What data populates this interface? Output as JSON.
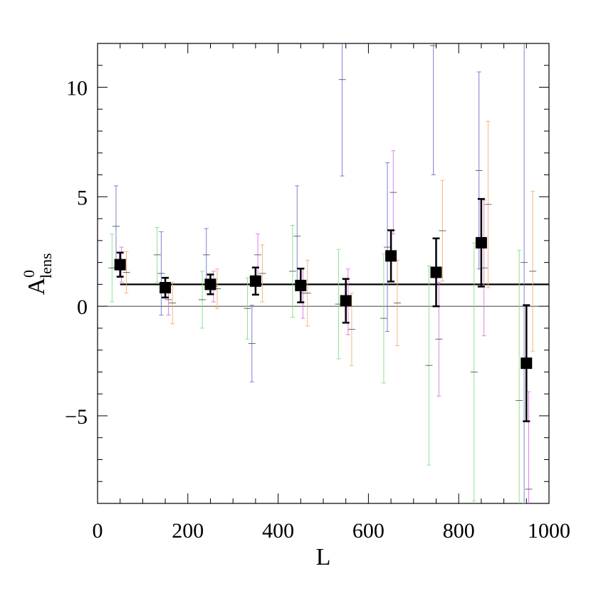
{
  "chart_data": {
    "type": "errorbar",
    "xlabel": "L",
    "ylabel": {
      "base": "A",
      "sup": "0",
      "sub": "lens"
    },
    "xlim": [
      0,
      1000
    ],
    "ylim": [
      -9,
      12
    ],
    "xticks": [
      0,
      200,
      400,
      600,
      800,
      1000
    ],
    "yticks": [
      -5,
      0,
      5,
      10
    ],
    "xminor": [
      50,
      100,
      150,
      250,
      300,
      350,
      450,
      500,
      550,
      650,
      700,
      750,
      850,
      900,
      950
    ],
    "yminor": [
      -8,
      -7,
      -6,
      -4,
      -3,
      -2,
      -1,
      1,
      2,
      3,
      4,
      6,
      7,
      8,
      9,
      11
    ],
    "lines": [
      {
        "y": 1,
        "x": [
          50,
          1000
        ],
        "color": "#000000"
      },
      {
        "y": 0,
        "x": [
          0,
          1000
        ],
        "color": "#000000"
      }
    ],
    "series": [
      {
        "color": "#80e080",
        "x": [
          32,
          132,
          232,
          332,
          432,
          534,
          634,
          734,
          834,
          934
        ],
        "values": [
          1.75,
          2.35,
          0.3,
          -0.1,
          1.6,
          0.1,
          -0.55,
          -2.7,
          -3.0,
          -4.3
        ],
        "errors": [
          1.55,
          1.25,
          1.3,
          1.4,
          2.1,
          2.5,
          2.95,
          4.55,
          5.9,
          6.85
        ]
      },
      {
        "color": "#7070d0",
        "x": [
          41,
          141,
          241,
          342,
          442,
          542,
          642,
          744,
          845,
          945
        ],
        "values": [
          3.65,
          1.5,
          2.35,
          -1.7,
          3.2,
          10.35,
          2.7,
          11.9,
          6.2,
          2.0
        ],
        "errors": [
          1.85,
          1.9,
          1.2,
          1.75,
          2.3,
          4.4,
          3.85,
          5.9,
          4.5,
          11.0
        ]
      },
      {
        "color": "#e070e0",
        "x": [
          53,
          157,
          257,
          355,
          455,
          555,
          655,
          756,
          856,
          955
        ],
        "values": [
          1.9,
          0.3,
          0.9,
          2.35,
          0.6,
          0.2,
          5.2,
          -1.5,
          1.75,
          -8.35
        ],
        "errors": [
          0.8,
          0.7,
          0.7,
          0.95,
          1.15,
          1.5,
          1.9,
          2.6,
          3.1,
          4.45
        ]
      },
      {
        "color": "#f0b070",
        "x": [
          64,
          166,
          265,
          365,
          465,
          563,
          664,
          764,
          865,
          964
        ],
        "values": [
          1.55,
          0.15,
          0.8,
          1.5,
          0.6,
          -1.05,
          0.15,
          3.45,
          4.65,
          1.6
        ],
        "errors": [
          0.95,
          0.95,
          0.9,
          1.3,
          1.5,
          1.65,
          1.95,
          2.3,
          3.8,
          3.65
        ]
      },
      {
        "color": "#000000",
        "x": [
          50,
          150,
          250,
          350,
          450,
          550,
          650,
          750,
          850,
          950
        ],
        "values": [
          1.9,
          0.85,
          1.0,
          1.15,
          0.95,
          0.25,
          2.3,
          1.55,
          2.9,
          -2.6
        ],
        "errors": [
          0.55,
          0.45,
          0.45,
          0.62,
          0.77,
          1.0,
          1.17,
          1.55,
          2.0,
          2.65
        ]
      }
    ]
  }
}
